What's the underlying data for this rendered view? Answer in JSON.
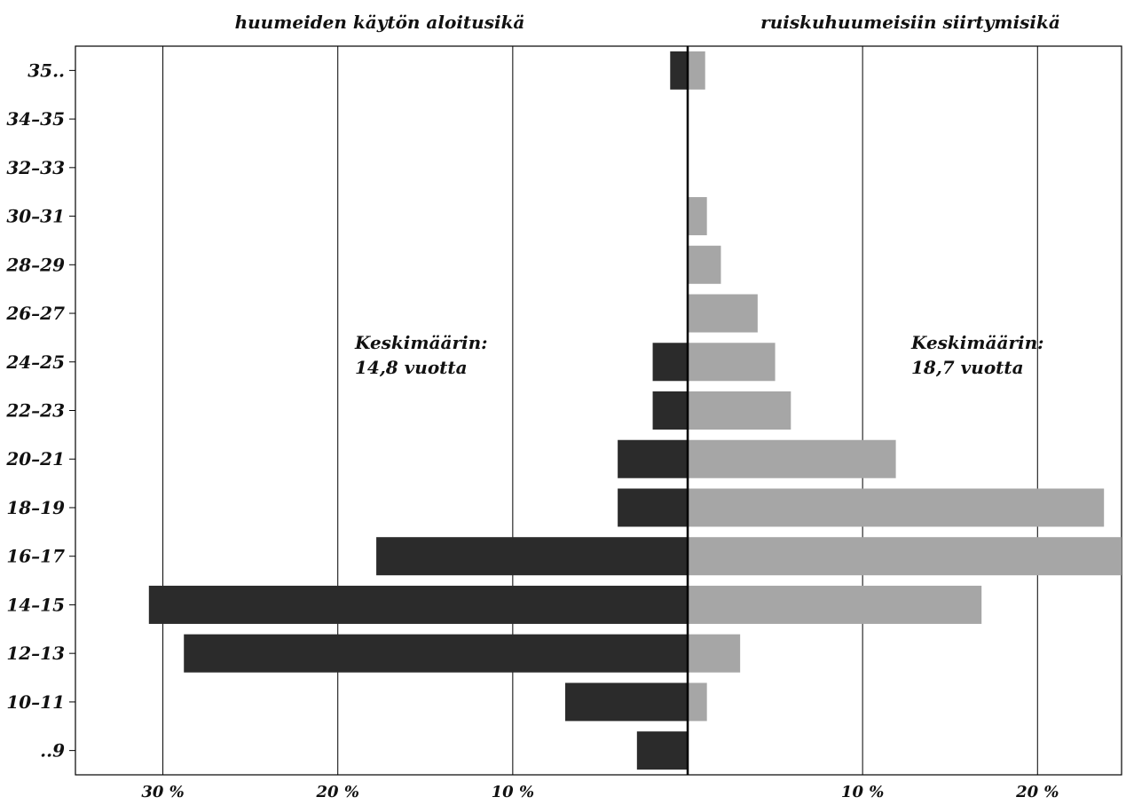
{
  "chart_data": {
    "type": "bar",
    "orientation": "horizontal",
    "layout": "back-to-back",
    "categories": [
      "..9",
      "10–11",
      "12–13",
      "14–15",
      "16–17",
      "18–19",
      "20–21",
      "22–23",
      "24–25",
      "26–27",
      "28–29",
      "30–31",
      "32–33",
      "34–35",
      "35.."
    ],
    "series": [
      {
        "name": "huumeiden käytön aloitusikä",
        "side": "left",
        "color": "#2b2b2b",
        "values": [
          2.9,
          7.0,
          28.8,
          30.8,
          17.8,
          4.0,
          4.0,
          2.0,
          2.0,
          0,
          0,
          0,
          0,
          0,
          1.0
        ]
      },
      {
        "name": "ruiskuhuumeisiin siirtymisikä",
        "side": "right",
        "color": "#a6a6a6",
        "values": [
          0,
          1.1,
          3.0,
          16.8,
          24.8,
          23.8,
          11.9,
          5.9,
          5.0,
          4.0,
          1.9,
          1.1,
          0,
          0,
          1.0
        ]
      }
    ],
    "x_ticks": {
      "left": [
        {
          "value": 30,
          "label": "30 %"
        },
        {
          "value": 20,
          "label": "20 %"
        },
        {
          "value": 10,
          "label": "10 %"
        }
      ],
      "right": [
        {
          "value": 10,
          "label": "10 %"
        },
        {
          "value": 20,
          "label": "20 %"
        }
      ]
    },
    "xlim_left": [
      0,
      35
    ],
    "xlim_right": [
      0,
      25
    ],
    "grid": "vertical",
    "annotations": [
      {
        "side": "left",
        "lines": [
          "Keskimäärin:",
          "14,8 vuotta"
        ]
      },
      {
        "side": "right",
        "lines": [
          "Keskimäärin:",
          "18,7 vuotta"
        ]
      }
    ],
    "legend": "none"
  }
}
